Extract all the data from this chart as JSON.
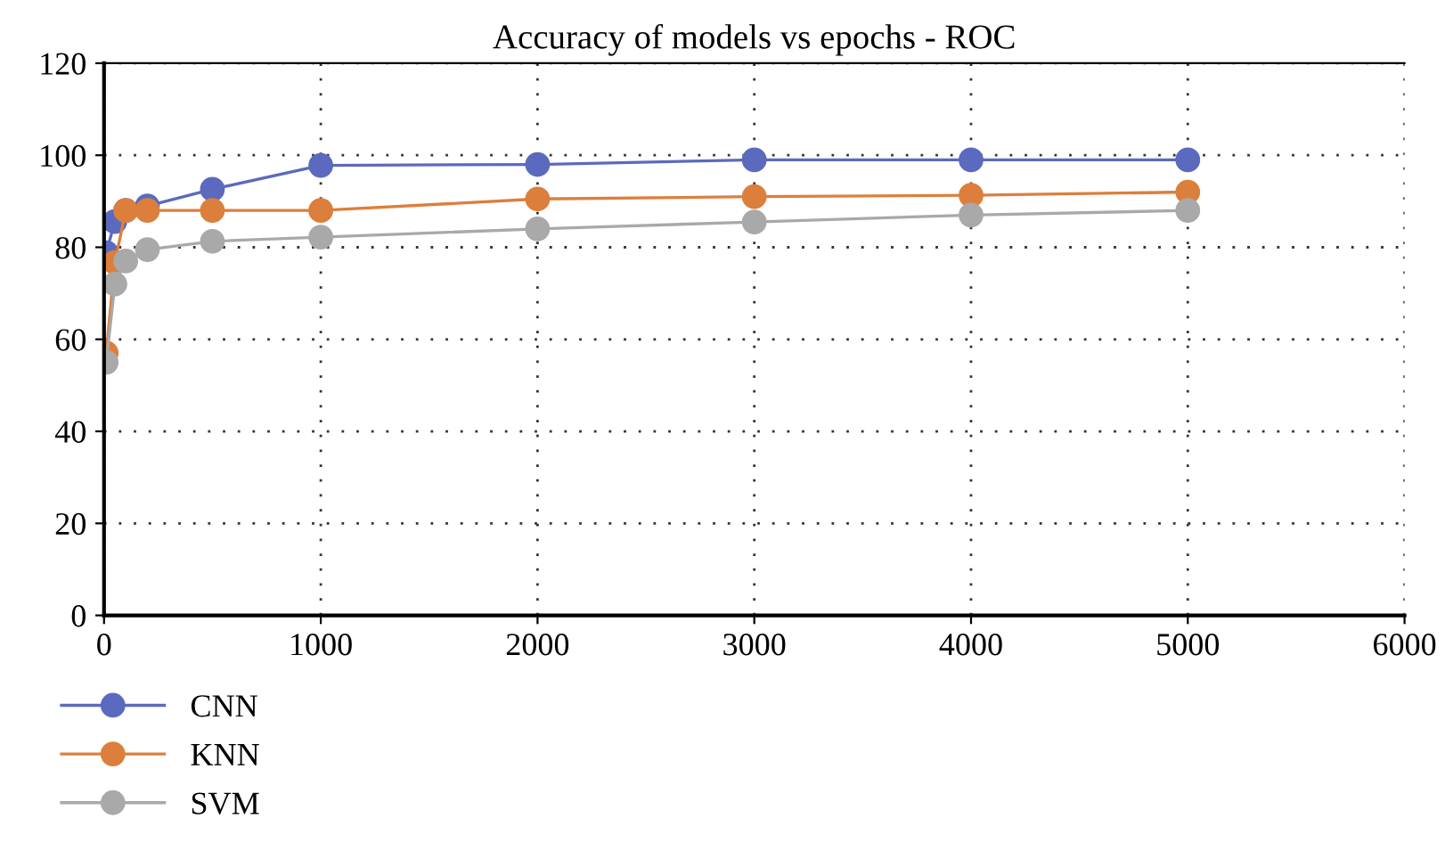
{
  "chart_data": {
    "type": "line",
    "title": "Accuracy of models vs epochs - ROC",
    "x": [
      10,
      50,
      100,
      200,
      500,
      1000,
      2000,
      3000,
      4000,
      5000
    ],
    "series": [
      {
        "name": "CNN",
        "color": "#5b6abf",
        "values": [
          78.8,
          85.6,
          88,
          89,
          92.6,
          97.8,
          98,
          99,
          99,
          99
        ]
      },
      {
        "name": "KNN",
        "color": "#dc7f3c",
        "values": [
          57,
          76.7,
          88,
          88,
          88,
          88,
          90.5,
          91,
          91.3,
          92
        ]
      },
      {
        "name": "SVM",
        "color": "#a9a9a9",
        "values": [
          55,
          72,
          77,
          79.5,
          81.3,
          82.2,
          84,
          85.5,
          87,
          88
        ]
      }
    ],
    "xlim": [
      0,
      6000
    ],
    "xticks": [
      0,
      1000,
      2000,
      3000,
      4000,
      5000,
      6000
    ],
    "ylim": [
      0,
      120
    ],
    "yticks": [
      0,
      20,
      40,
      60,
      80,
      100,
      120
    ],
    "grid": true,
    "legend": "bottom left",
    "marker": "circle",
    "line_style": "solid"
  }
}
